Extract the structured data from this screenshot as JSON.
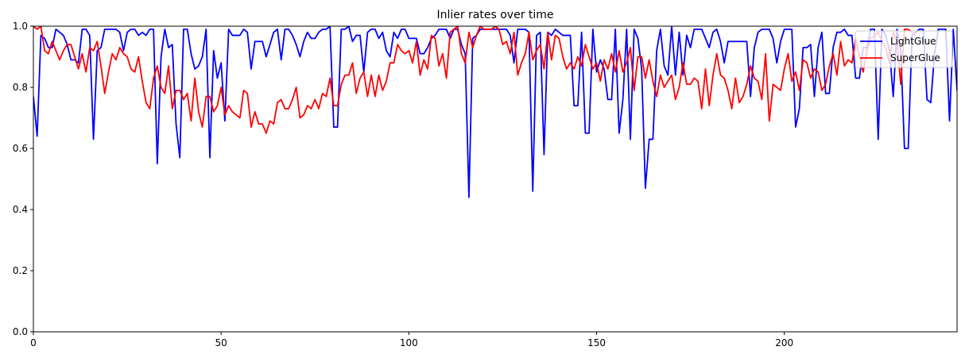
{
  "chart_data": {
    "type": "line",
    "title": "Inlier rates over time",
    "xlabel": "",
    "ylabel": "",
    "xlim": [
      0,
      246
    ],
    "ylim": [
      0.0,
      1.0
    ],
    "x_ticks": [
      0,
      50,
      100,
      150,
      200
    ],
    "y_ticks": [
      0.0,
      0.2,
      0.4,
      0.6,
      0.8,
      1.0
    ],
    "x_tick_labels": [
      "0",
      "50",
      "100",
      "150",
      "200"
    ],
    "y_tick_labels": [
      "0.0",
      "0.2",
      "0.4",
      "0.6",
      "0.8",
      "1.0"
    ],
    "grid": false,
    "legend_position": "top-right",
    "series": [
      {
        "name": "LightGlue",
        "color": "#0000ff",
        "values": [
          0.77,
          0.64,
          0.97,
          0.96,
          0.93,
          0.93,
          0.99,
          0.98,
          0.97,
          0.94,
          0.89,
          0.89,
          0.88,
          0.99,
          0.99,
          0.97,
          0.63,
          0.92,
          0.93,
          0.99,
          0.99,
          0.99,
          0.99,
          0.98,
          0.92,
          0.98,
          0.99,
          0.99,
          0.97,
          0.98,
          0.97,
          0.99,
          0.99,
          0.55,
          0.9,
          0.99,
          0.93,
          0.94,
          0.68,
          0.57,
          0.99,
          0.99,
          0.91,
          0.86,
          0.87,
          0.9,
          0.99,
          0.57,
          0.92,
          0.83,
          0.88,
          0.69,
          0.99,
          0.97,
          0.97,
          0.97,
          0.99,
          0.98,
          0.86,
          0.95,
          0.95,
          0.95,
          0.9,
          0.94,
          0.98,
          0.99,
          0.89,
          0.99,
          0.99,
          0.97,
          0.94,
          0.9,
          0.95,
          0.98,
          0.96,
          0.96,
          0.98,
          0.99,
          0.99,
          1.0,
          0.67,
          0.67,
          0.99,
          0.99,
          1.0,
          0.95,
          0.97,
          0.97,
          0.85,
          0.98,
          0.99,
          0.99,
          0.96,
          0.98,
          0.92,
          0.9,
          0.98,
          0.96,
          0.99,
          0.99,
          0.96,
          0.96,
          0.96,
          0.91,
          0.91,
          0.93,
          0.96,
          0.97,
          0.99,
          0.99,
          0.99,
          0.96,
          0.99,
          0.99,
          0.94,
          0.91,
          0.44,
          0.96,
          0.97,
          0.99,
          0.99,
          0.99,
          0.99,
          0.99,
          0.99,
          0.99,
          0.99,
          0.97,
          0.88,
          0.99,
          0.99,
          0.99,
          0.98,
          0.46,
          0.97,
          0.98,
          0.58,
          0.98,
          0.97,
          0.99,
          0.98,
          0.97,
          0.97,
          0.97,
          0.74,
          0.74,
          0.98,
          0.65,
          0.65,
          0.99,
          0.85,
          0.89,
          0.86,
          0.76,
          0.76,
          0.99,
          0.65,
          0.76,
          0.99,
          0.63,
          0.99,
          0.96,
          0.86,
          0.47,
          0.63,
          0.63,
          0.92,
          0.99,
          0.87,
          0.84,
          1.0,
          0.84,
          0.98,
          0.84,
          0.97,
          0.93,
          0.99,
          0.99,
          0.99,
          0.96,
          0.93,
          0.98,
          0.99,
          0.95,
          0.88,
          0.95,
          0.95,
          0.95,
          0.95,
          0.95,
          0.95,
          0.77,
          0.93,
          0.98,
          0.99,
          0.99,
          0.99,
          0.96,
          0.88,
          0.95,
          0.99,
          0.99,
          0.99,
          0.67,
          0.73,
          0.93,
          0.93,
          0.94,
          0.77,
          0.93,
          0.98,
          0.78,
          0.78,
          0.93,
          0.98,
          0.98,
          0.99,
          0.97,
          0.97,
          0.83,
          0.83,
          0.93,
          0.93,
          0.99,
          0.99,
          0.63,
          0.99,
          0.97,
          0.92,
          0.77,
          0.99,
          0.92,
          0.6,
          0.6,
          0.97,
          0.98,
          0.99,
          0.99,
          0.76,
          0.75,
          0.91,
          0.99,
          0.99,
          0.99,
          0.69,
          0.99,
          0.79,
          0.79
        ]
      },
      {
        "name": "SuperGlue",
        "color": "#ff0000",
        "values": [
          1.0,
          0.99,
          1.0,
          0.92,
          0.91,
          0.95,
          0.92,
          0.89,
          0.92,
          0.94,
          0.94,
          0.9,
          0.86,
          0.91,
          0.85,
          0.93,
          0.92,
          0.95,
          0.87,
          0.78,
          0.85,
          0.91,
          0.89,
          0.93,
          0.91,
          0.9,
          0.86,
          0.85,
          0.9,
          0.82,
          0.75,
          0.73,
          0.83,
          0.87,
          0.8,
          0.78,
          0.87,
          0.73,
          0.79,
          0.79,
          0.76,
          0.78,
          0.69,
          0.83,
          0.72,
          0.67,
          0.77,
          0.77,
          0.72,
          0.74,
          0.8,
          0.71,
          0.74,
          0.72,
          0.71,
          0.7,
          0.79,
          0.78,
          0.67,
          0.72,
          0.68,
          0.68,
          0.65,
          0.69,
          0.68,
          0.75,
          0.76,
          0.73,
          0.73,
          0.76,
          0.8,
          0.7,
          0.71,
          0.74,
          0.73,
          0.76,
          0.73,
          0.78,
          0.77,
          0.83,
          0.74,
          0.74,
          0.81,
          0.84,
          0.84,
          0.88,
          0.78,
          0.83,
          0.85,
          0.77,
          0.84,
          0.77,
          0.84,
          0.79,
          0.82,
          0.88,
          0.88,
          0.94,
          0.92,
          0.91,
          0.92,
          0.88,
          0.95,
          0.84,
          0.89,
          0.86,
          0.97,
          0.96,
          0.87,
          0.91,
          0.83,
          0.98,
          0.99,
          1.0,
          0.91,
          0.88,
          0.98,
          0.93,
          0.97,
          1.0,
          0.99,
          0.99,
          0.99,
          1.0,
          0.99,
          0.94,
          0.95,
          0.91,
          0.98,
          0.84,
          0.88,
          0.91,
          0.98,
          0.89,
          0.92,
          0.94,
          0.86,
          0.98,
          0.89,
          0.97,
          0.96,
          0.9,
          0.86,
          0.88,
          0.86,
          0.9,
          0.87,
          0.94,
          0.9,
          0.86,
          0.88,
          0.82,
          0.89,
          0.86,
          0.91,
          0.85,
          0.92,
          0.85,
          0.88,
          0.93,
          0.79,
          0.9,
          0.9,
          0.83,
          0.89,
          0.82,
          0.77,
          0.84,
          0.8,
          0.82,
          0.84,
          0.76,
          0.8,
          0.88,
          0.81,
          0.81,
          0.83,
          0.82,
          0.73,
          0.86,
          0.74,
          0.84,
          0.91,
          0.84,
          0.83,
          0.79,
          0.73,
          0.83,
          0.75,
          0.77,
          0.81,
          0.87,
          0.83,
          0.82,
          0.76,
          0.91,
          0.69,
          0.81,
          0.8,
          0.79,
          0.86,
          0.91,
          0.82,
          0.85,
          0.79,
          0.89,
          0.88,
          0.83,
          0.86,
          0.85,
          0.79,
          0.81,
          0.87,
          0.91,
          0.84,
          0.95,
          0.87,
          0.89,
          0.88,
          0.96,
          0.9,
          0.85,
          0.92,
          0.96,
          0.97,
          0.98,
          0.95,
          0.93,
          0.88,
          0.98,
          0.95,
          0.81,
          0.99,
          0.99,
          0.98,
          0.97
        ]
      }
    ]
  }
}
